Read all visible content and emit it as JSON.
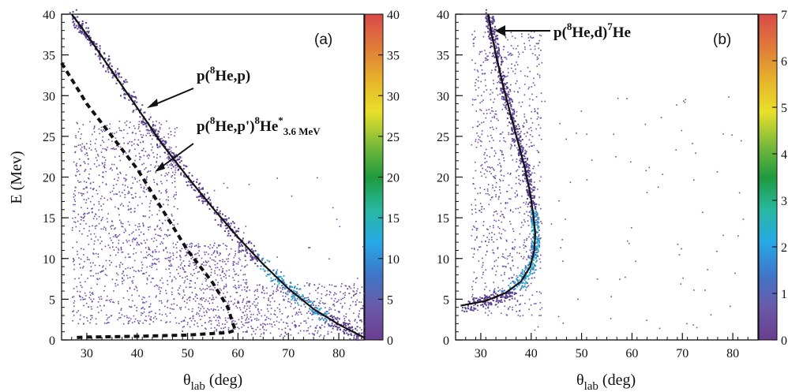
{
  "chart_data": [
    {
      "type": "scatter",
      "panel_label": "(a)",
      "xlabel": "θlab (deg)",
      "xlabel_main": "θ",
      "xlabel_sub": "lab",
      "xlabel_rest": " (deg)",
      "ylabel": "E (Mev)",
      "xlim": [
        25,
        85
      ],
      "ylim": [
        0,
        40
      ],
      "xticks": [
        30,
        40,
        50,
        60,
        70,
        80
      ],
      "yticks": [
        0,
        5,
        10,
        15,
        20,
        25,
        30,
        35,
        40
      ],
      "colorbar": {
        "range": [
          0,
          40
        ],
        "ticks": [
          0,
          5,
          10,
          15,
          20,
          25,
          30,
          35,
          40
        ]
      },
      "annotations": [
        {
          "text": "p(8He,p)",
          "parts": [
            "p(",
            "8",
            "He,p)"
          ]
        },
        {
          "text": "p(8He,p')8He*3.6 MeV",
          "parts": [
            "p(",
            "8",
            "He,p'",
            ")",
            "8",
            "He",
            "*",
            "3.6 MeV"
          ]
        }
      ],
      "series": [
        {
          "style": "solid",
          "x": [
            27,
            30,
            35,
            40,
            45,
            50,
            55,
            60,
            65,
            70,
            75,
            80,
            85
          ],
          "y": [
            40,
            37.5,
            33,
            28.5,
            24,
            20,
            16.2,
            12.6,
            9.3,
            6.3,
            3.8,
            1.9,
            0.3
          ]
        },
        {
          "style": "dashed",
          "x": [
            25,
            28,
            30,
            35,
            40,
            45,
            50,
            55,
            58,
            59,
            59.5,
            58,
            50,
            40,
            30,
            28
          ],
          "y": [
            34,
            31,
            29,
            25,
            21,
            16,
            11,
            7,
            4,
            2,
            1.2,
            0.9,
            0.6,
            0.45,
            0.35,
            0.3
          ]
        }
      ],
      "density_regions": [
        {
          "x": [
            27,
            48
          ],
          "y": [
            2,
            27
          ],
          "density": 0.8
        },
        {
          "x": [
            48,
            62
          ],
          "y": [
            1,
            12
          ],
          "density": 0.35
        },
        {
          "x": [
            62,
            85
          ],
          "y": [
            0.5,
            7
          ],
          "density": 0.3
        },
        {
          "x": [
            50,
            85
          ],
          "y": [
            0.5,
            20
          ],
          "density": 0.03
        }
      ]
    },
    {
      "type": "scatter",
      "panel_label": "(b)",
      "xlabel": "θlab (deg)",
      "xlabel_main": "θ",
      "xlabel_sub": "lab",
      "xlabel_rest": " (deg)",
      "xlim": [
        25,
        85
      ],
      "ylim": [
        0,
        40
      ],
      "xticks": [
        30,
        40,
        50,
        60,
        70,
        80
      ],
      "yticks": [
        0,
        5,
        10,
        15,
        20,
        25,
        30,
        35,
        40
      ],
      "colorbar": {
        "ticks": [
          "0",
          "1",
          "2",
          "3",
          "4",
          "5",
          "6",
          "7"
        ]
      },
      "annotations": [
        {
          "text": "p(8He,d)7He",
          "parts": [
            "p(",
            "8",
            "He,d)",
            "7",
            "He"
          ]
        }
      ],
      "series": [
        {
          "style": "solid",
          "x": [
            31.5,
            32,
            33,
            34.5,
            36,
            37.5,
            38.8,
            39.8,
            40.5,
            40.8,
            40.6,
            39.8,
            38,
            35,
            31,
            26
          ],
          "y": [
            40,
            38,
            35,
            31,
            27.5,
            24,
            21,
            18,
            15,
            13,
            11,
            9,
            7.2,
            5.8,
            4.8,
            4.2
          ]
        }
      ],
      "density_regions": [
        {
          "x": [
            28,
            42
          ],
          "y": [
            3,
            38
          ],
          "density": 0.6
        },
        {
          "x": [
            40,
            82
          ],
          "y": [
            1,
            30
          ],
          "density": 0.06
        }
      ]
    }
  ]
}
